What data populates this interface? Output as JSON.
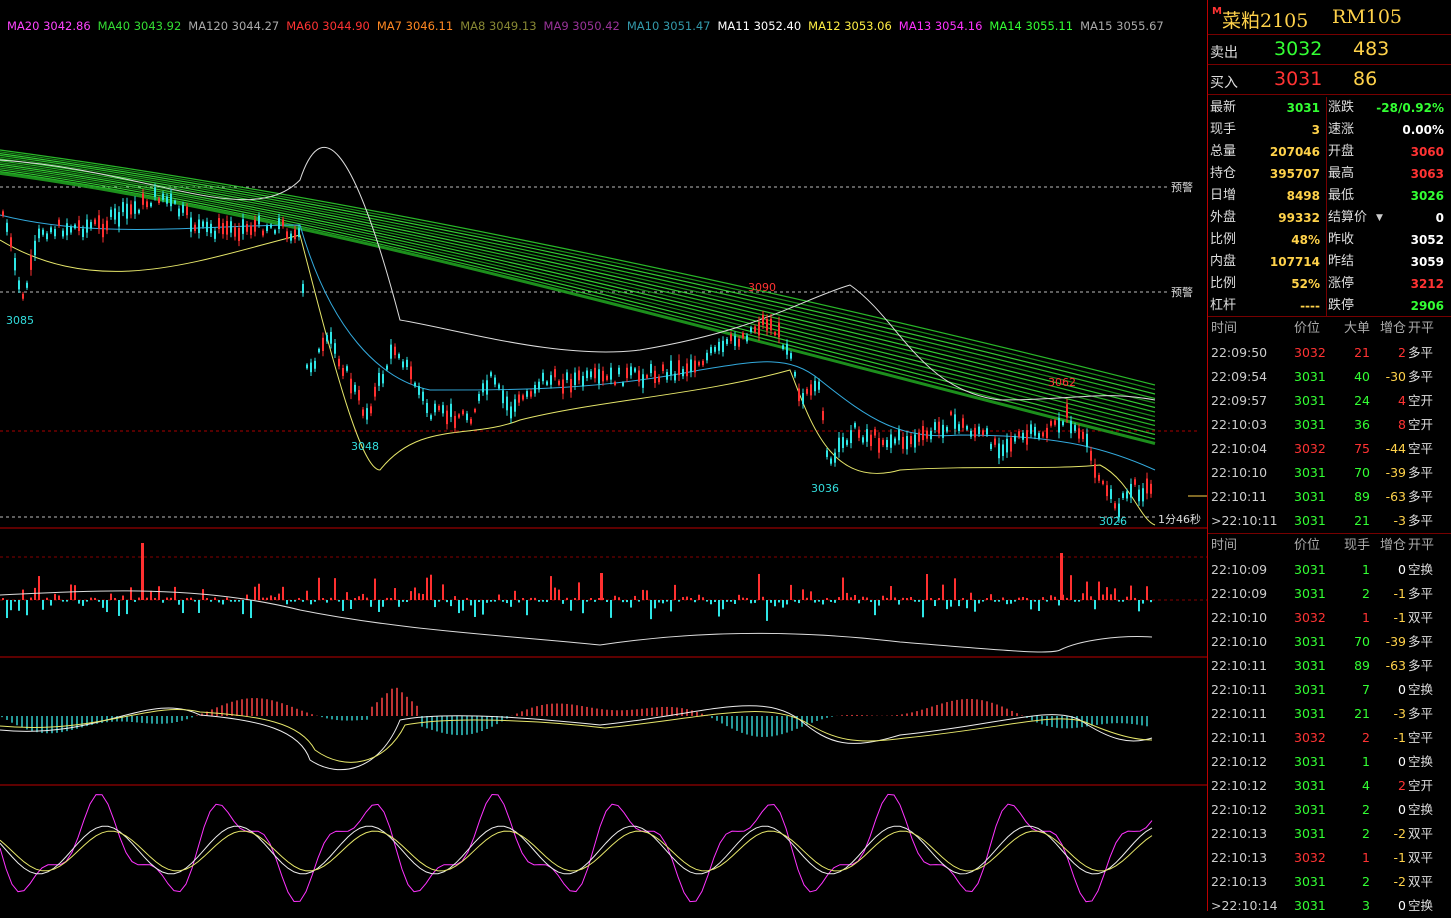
{
  "ma_legend": [
    {
      "label": "MA20 3042.86",
      "color": "#ff44ff"
    },
    {
      "label": "MA40 3043.92",
      "color": "#33dd33"
    },
    {
      "label": "MA120 3044.27",
      "color": "#aaaaaa"
    },
    {
      "label": "MA60 3044.90",
      "color": "#ff3333"
    },
    {
      "label": "MA7 3046.11",
      "color": "#ff8822"
    },
    {
      "label": "MA8 3049.13",
      "color": "#888833"
    },
    {
      "label": "MA9 3050.42",
      "color": "#993399"
    },
    {
      "label": "MA10 3051.47",
      "color": "#3399aa"
    },
    {
      "label": "MA11 3052.40",
      "color": "#ffffff"
    },
    {
      "label": "MA12 3053.06",
      "color": "#ffee44"
    },
    {
      "label": "MA13 3054.16",
      "color": "#ff33ff"
    },
    {
      "label": "MA14 3055.11",
      "color": "#33ff33"
    },
    {
      "label": "MA15 3055.67",
      "color": "#aaaaaa"
    }
  ],
  "chart_labels": {
    "p3085": "3085",
    "p3048": "3048",
    "p3090": "3090",
    "p3036": "3036",
    "p3062": "3062",
    "p3026": "3026",
    "alert1": "预警",
    "alert2": "预警",
    "countdown": "1分46秒"
  },
  "panel": {
    "mark": "M",
    "name": "菜粕2105",
    "code": "RM105",
    "sell": {
      "label": "卖出",
      "price": "3032",
      "vol": "483"
    },
    "buy": {
      "label": "买入",
      "price": "3031",
      "vol": "86"
    },
    "left": [
      {
        "k": "最新",
        "v": "3031",
        "color": "#33ff33"
      },
      {
        "k": "现手",
        "v": "3",
        "color": "#ffd24a"
      },
      {
        "k": "总量",
        "v": "207046",
        "color": "#ffd24a"
      },
      {
        "k": "持仓",
        "v": "395707",
        "color": "#ffd24a"
      },
      {
        "k": "日增",
        "v": "8498",
        "color": "#ffd24a"
      },
      {
        "k": "外盘",
        "v": "99332",
        "color": "#ffd24a"
      },
      {
        "k": "比例",
        "v": "48%",
        "color": "#ffd24a"
      },
      {
        "k": "内盘",
        "v": "107714",
        "color": "#ffd24a"
      },
      {
        "k": "比例",
        "v": "52%",
        "color": "#ffd24a"
      },
      {
        "k": "杠杆",
        "v": "----",
        "color": "#ffd24a"
      }
    ],
    "right": [
      {
        "k": "涨跌",
        "v": "-28/0.92%",
        "color": "#33ff33"
      },
      {
        "k": "速涨",
        "v": "0.00%",
        "color": "#ffffff"
      },
      {
        "k": "开盘",
        "v": "3060",
        "color": "#ff3333"
      },
      {
        "k": "最高",
        "v": "3063",
        "color": "#ff3333"
      },
      {
        "k": "最低",
        "v": "3026",
        "color": "#33ff33"
      },
      {
        "k": "结算价",
        "v": "0",
        "color": "#ffffff"
      },
      {
        "k": "昨收",
        "v": "3052",
        "color": "#ffffff"
      },
      {
        "k": "昨结",
        "v": "3059",
        "color": "#ffffff"
      },
      {
        "k": "涨停",
        "v": "3212",
        "color": "#ff3333"
      },
      {
        "k": "跌停",
        "v": "2906",
        "color": "#33ff33"
      }
    ],
    "big_header": {
      "t": "时间",
      "p": "价位",
      "v": "大单",
      "d": "增仓",
      "o": "开平"
    },
    "big_rows": [
      {
        "t": "22:09:50",
        "p": "3032",
        "v": "21",
        "d": "2",
        "o": "多平",
        "pc": "#ff3333"
      },
      {
        "t": "22:09:54",
        "p": "3031",
        "v": "40",
        "d": "-30",
        "o": "多平",
        "pc": "#33ff33"
      },
      {
        "t": "22:09:57",
        "p": "3031",
        "v": "24",
        "d": "4",
        "o": "空开",
        "pc": "#33ff33"
      },
      {
        "t": "22:10:03",
        "p": "3031",
        "v": "36",
        "d": "8",
        "o": "空开",
        "pc": "#33ff33"
      },
      {
        "t": "22:10:04",
        "p": "3032",
        "v": "75",
        "d": "-44",
        "o": "空平",
        "pc": "#ff3333"
      },
      {
        "t": "22:10:10",
        "p": "3031",
        "v": "70",
        "d": "-39",
        "o": "多平",
        "pc": "#33ff33"
      },
      {
        "t": "22:10:11",
        "p": "3031",
        "v": "89",
        "d": "-63",
        "o": "多平",
        "pc": "#33ff33"
      },
      {
        "t": ">22:10:11",
        "p": "3031",
        "v": "21",
        "d": "-3",
        "o": "多平",
        "pc": "#33ff33"
      }
    ],
    "tick_header": {
      "t": "时间",
      "p": "价位",
      "v": "现手",
      "d": "增仓",
      "o": "开平"
    },
    "tick_rows": [
      {
        "t": "22:10:09",
        "p": "3031",
        "v": "1",
        "d": "0",
        "o": "空换",
        "pc": "#33ff33"
      },
      {
        "t": "22:10:09",
        "p": "3031",
        "v": "2",
        "d": "-1",
        "o": "多平",
        "pc": "#33ff33"
      },
      {
        "t": "22:10:10",
        "p": "3032",
        "v": "1",
        "d": "-1",
        "o": "双平",
        "pc": "#ff3333"
      },
      {
        "t": "22:10:10",
        "p": "3031",
        "v": "70",
        "d": "-39",
        "o": "多平",
        "pc": "#33ff33"
      },
      {
        "t": "22:10:11",
        "p": "3031",
        "v": "89",
        "d": "-63",
        "o": "多平",
        "pc": "#33ff33"
      },
      {
        "t": "22:10:11",
        "p": "3031",
        "v": "7",
        "d": "0",
        "o": "空换",
        "pc": "#33ff33"
      },
      {
        "t": "22:10:11",
        "p": "3031",
        "v": "21",
        "d": "-3",
        "o": "多平",
        "pc": "#33ff33"
      },
      {
        "t": "22:10:11",
        "p": "3032",
        "v": "2",
        "d": "-1",
        "o": "空平",
        "pc": "#ff3333"
      },
      {
        "t": "22:10:12",
        "p": "3031",
        "v": "1",
        "d": "0",
        "o": "空换",
        "pc": "#33ff33"
      },
      {
        "t": "22:10:12",
        "p": "3031",
        "v": "4",
        "d": "2",
        "o": "空开",
        "pc": "#33ff33"
      },
      {
        "t": "22:10:12",
        "p": "3031",
        "v": "2",
        "d": "0",
        "o": "空换",
        "pc": "#33ff33"
      },
      {
        "t": "22:10:13",
        "p": "3031",
        "v": "2",
        "d": "-2",
        "o": "双平",
        "pc": "#33ff33"
      },
      {
        "t": "22:10:13",
        "p": "3032",
        "v": "1",
        "d": "-1",
        "o": "双平",
        "pc": "#ff3333"
      },
      {
        "t": "22:10:13",
        "p": "3031",
        "v": "2",
        "d": "-2",
        "o": "双平",
        "pc": "#33ff33"
      },
      {
        "t": ">22:10:14",
        "p": "3031",
        "v": "3",
        "d": "0",
        "o": "空换",
        "pc": "#33ff33"
      }
    ]
  }
}
